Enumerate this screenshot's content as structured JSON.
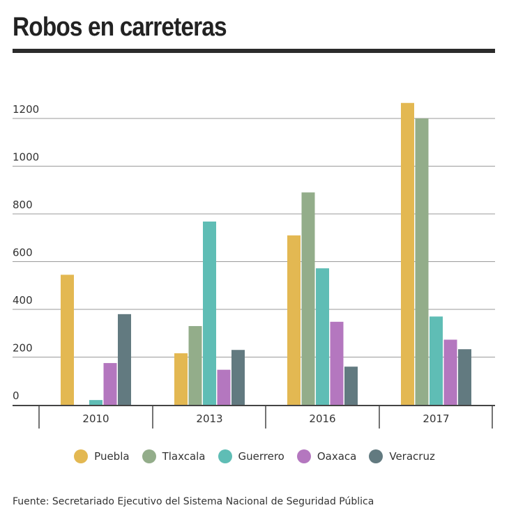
{
  "title": "Robos en carreteras",
  "source": "Fuente: Secretariado Ejecutivo del Sistema Nacional de Seguridad Pública",
  "chart_data": {
    "type": "bar",
    "title": "Robos en carreteras",
    "xlabel": "",
    "ylabel": "",
    "categories": [
      "2010",
      "2013",
      "2016",
      "2017"
    ],
    "ylim": [
      0,
      1200
    ],
    "yticks": [
      "0",
      "200",
      "400",
      "600",
      "800",
      "1000",
      "1200"
    ],
    "grid": true,
    "legend_position": "bottom",
    "series": [
      {
        "name": "Puebla",
        "color": "#e3b852",
        "values": [
          545,
          216,
          710,
          1265
        ]
      },
      {
        "name": "Tlaxcala",
        "color": "#93ad8a",
        "values": [
          0,
          330,
          890,
          1200
        ]
      },
      {
        "name": "Guerrero",
        "color": "#5fbdb5",
        "values": [
          20,
          768,
          572,
          370
        ]
      },
      {
        "name": "Oaxaca",
        "color": "#b477bf",
        "values": [
          175,
          147,
          348,
          273
        ]
      },
      {
        "name": "Veracruz",
        "color": "#627a80",
        "values": [
          380,
          230,
          160,
          233
        ]
      }
    ]
  }
}
